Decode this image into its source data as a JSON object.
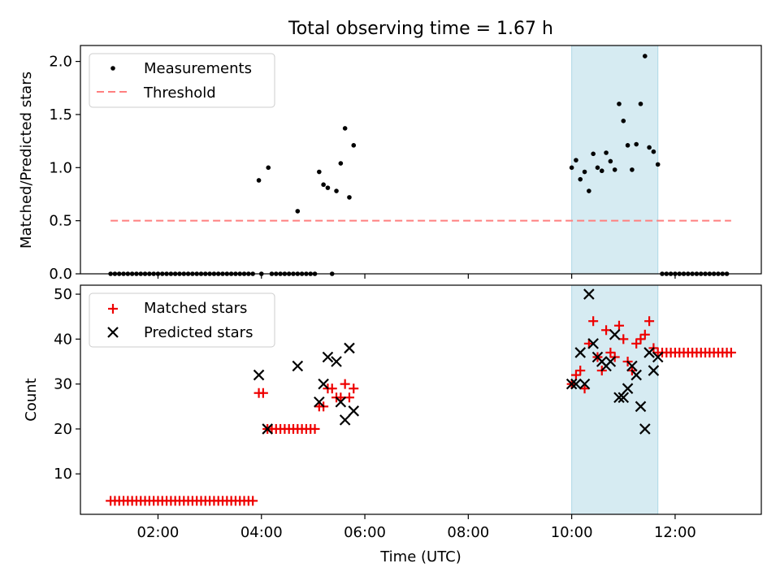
{
  "figure": {
    "title": "Total observing time = 1.67 h",
    "xlabel": "Time (UTC)"
  },
  "colors": {
    "measurement": "#000000",
    "threshold": "#ff7f7f",
    "matched": "#ee0000",
    "predicted": "#000000",
    "window_fill": "#add8e6"
  },
  "chart_data": [
    {
      "type": "scatter",
      "ylabel": "Matched/Predicted stars",
      "xlim": [
        "00:30",
        "13:40"
      ],
      "ylim": [
        0,
        2.15
      ],
      "xticks": [
        "02:00",
        "04:00",
        "06:00",
        "08:00",
        "10:00",
        "12:00"
      ],
      "yticks": [
        "0.0",
        "0.5",
        "1.0",
        "1.5",
        "2.0"
      ],
      "legend": {
        "position": "top-left",
        "entries": [
          "Measurements",
          "Threshold"
        ]
      },
      "highlight_window": {
        "start": "10:00",
        "end": "11:40"
      },
      "threshold": {
        "name": "Threshold",
        "y": 0.5,
        "from": "01:05",
        "to": "13:05"
      },
      "series": [
        {
          "name": "Measurements",
          "points": [
            [
              "01:05",
              0
            ],
            [
              "01:10",
              0
            ],
            [
              "01:15",
              0
            ],
            [
              "01:20",
              0
            ],
            [
              "01:25",
              0
            ],
            [
              "01:30",
              0
            ],
            [
              "01:35",
              0
            ],
            [
              "01:40",
              0
            ],
            [
              "01:45",
              0
            ],
            [
              "01:50",
              0
            ],
            [
              "01:55",
              0
            ],
            [
              "02:00",
              0
            ],
            [
              "02:05",
              0
            ],
            [
              "02:10",
              0
            ],
            [
              "02:15",
              0
            ],
            [
              "02:20",
              0
            ],
            [
              "02:25",
              0
            ],
            [
              "02:30",
              0
            ],
            [
              "02:35",
              0
            ],
            [
              "02:40",
              0
            ],
            [
              "02:45",
              0
            ],
            [
              "02:50",
              0
            ],
            [
              "02:55",
              0
            ],
            [
              "03:00",
              0
            ],
            [
              "03:05",
              0
            ],
            [
              "03:10",
              0
            ],
            [
              "03:15",
              0
            ],
            [
              "03:20",
              0
            ],
            [
              "03:25",
              0
            ],
            [
              "03:30",
              0
            ],
            [
              "03:35",
              0
            ],
            [
              "03:40",
              0
            ],
            [
              "03:45",
              0
            ],
            [
              "03:50",
              0
            ],
            [
              "03:57",
              0.88
            ],
            [
              "04:00",
              0
            ],
            [
              "04:08",
              1.0
            ],
            [
              "04:12",
              0
            ],
            [
              "04:17",
              0
            ],
            [
              "04:22",
              0
            ],
            [
              "04:27",
              0
            ],
            [
              "04:32",
              0
            ],
            [
              "04:37",
              0
            ],
            [
              "04:42",
              0
            ],
            [
              "04:47",
              0
            ],
            [
              "04:42",
              0.59
            ],
            [
              "04:52",
              0
            ],
            [
              "04:57",
              0
            ],
            [
              "05:02",
              0
            ],
            [
              "05:07",
              0.96
            ],
            [
              "05:12",
              0.84
            ],
            [
              "05:17",
              0.81
            ],
            [
              "05:22",
              0
            ],
            [
              "05:27",
              0.78
            ],
            [
              "05:32",
              1.04
            ],
            [
              "05:37",
              1.37
            ],
            [
              "05:42",
              0.72
            ],
            [
              "05:47",
              1.21
            ],
            [
              "10:00",
              1.0
            ],
            [
              "10:05",
              1.07
            ],
            [
              "10:10",
              0.89
            ],
            [
              "10:15",
              0.96
            ],
            [
              "10:20",
              0.78
            ],
            [
              "10:25",
              1.13
            ],
            [
              "10:30",
              1.0
            ],
            [
              "10:35",
              0.97
            ],
            [
              "10:40",
              1.14
            ],
            [
              "10:45",
              1.06
            ],
            [
              "10:50",
              0.98
            ],
            [
              "10:55",
              1.6
            ],
            [
              "11:00",
              1.44
            ],
            [
              "11:05",
              1.21
            ],
            [
              "11:10",
              0.98
            ],
            [
              "11:15",
              1.22
            ],
            [
              "11:20",
              1.6
            ],
            [
              "11:25",
              2.05
            ],
            [
              "11:30",
              1.19
            ],
            [
              "11:35",
              1.15
            ],
            [
              "11:40",
              1.03
            ],
            [
              "11:45",
              0
            ],
            [
              "11:50",
              0
            ],
            [
              "11:55",
              0
            ],
            [
              "12:00",
              0
            ],
            [
              "12:05",
              0
            ],
            [
              "12:10",
              0
            ],
            [
              "12:15",
              0
            ],
            [
              "12:20",
              0
            ],
            [
              "12:25",
              0
            ],
            [
              "12:30",
              0
            ],
            [
              "12:35",
              0
            ],
            [
              "12:40",
              0
            ],
            [
              "12:45",
              0
            ],
            [
              "12:50",
              0
            ],
            [
              "12:55",
              0
            ],
            [
              "13:00",
              0
            ]
          ]
        }
      ]
    },
    {
      "type": "scatter",
      "ylabel": "Count",
      "xlim": [
        "00:30",
        "13:40"
      ],
      "ylim": [
        1,
        52
      ],
      "xticks": [
        "02:00",
        "04:00",
        "06:00",
        "08:00",
        "10:00",
        "12:00"
      ],
      "yticks": [
        "10",
        "20",
        "30",
        "40",
        "50"
      ],
      "legend": {
        "position": "top-left",
        "entries": [
          "Matched stars",
          "Predicted stars"
        ]
      },
      "highlight_window": {
        "start": "10:00",
        "end": "11:40"
      },
      "series": [
        {
          "name": "Matched stars",
          "points": [
            [
              "01:05",
              4
            ],
            [
              "01:10",
              4
            ],
            [
              "01:15",
              4
            ],
            [
              "01:20",
              4
            ],
            [
              "01:25",
              4
            ],
            [
              "01:30",
              4
            ],
            [
              "01:35",
              4
            ],
            [
              "01:40",
              4
            ],
            [
              "01:45",
              4
            ],
            [
              "01:50",
              4
            ],
            [
              "01:55",
              4
            ],
            [
              "02:00",
              4
            ],
            [
              "02:05",
              4
            ],
            [
              "02:10",
              4
            ],
            [
              "02:15",
              4
            ],
            [
              "02:20",
              4
            ],
            [
              "02:25",
              4
            ],
            [
              "02:30",
              4
            ],
            [
              "02:35",
              4
            ],
            [
              "02:40",
              4
            ],
            [
              "02:45",
              4
            ],
            [
              "02:50",
              4
            ],
            [
              "02:55",
              4
            ],
            [
              "03:00",
              4
            ],
            [
              "03:05",
              4
            ],
            [
              "03:10",
              4
            ],
            [
              "03:15",
              4
            ],
            [
              "03:20",
              4
            ],
            [
              "03:25",
              4
            ],
            [
              "03:30",
              4
            ],
            [
              "03:35",
              4
            ],
            [
              "03:40",
              4
            ],
            [
              "03:45",
              4
            ],
            [
              "03:50",
              4
            ],
            [
              "03:57",
              28
            ],
            [
              "04:02",
              28
            ],
            [
              "04:07",
              20
            ],
            [
              "04:12",
              20
            ],
            [
              "04:17",
              20
            ],
            [
              "04:22",
              20
            ],
            [
              "04:27",
              20
            ],
            [
              "04:32",
              20
            ],
            [
              "04:37",
              20
            ],
            [
              "04:42",
              20
            ],
            [
              "04:47",
              20
            ],
            [
              "04:52",
              20
            ],
            [
              "04:57",
              20
            ],
            [
              "05:02",
              20
            ],
            [
              "05:07",
              25
            ],
            [
              "05:12",
              25
            ],
            [
              "05:17",
              29
            ],
            [
              "05:22",
              29
            ],
            [
              "05:27",
              27
            ],
            [
              "05:32",
              27
            ],
            [
              "05:37",
              30
            ],
            [
              "05:42",
              27
            ],
            [
              "05:47",
              29
            ],
            [
              "10:00",
              30
            ],
            [
              "10:05",
              32
            ],
            [
              "10:10",
              33
            ],
            [
              "10:15",
              29
            ],
            [
              "10:20",
              39
            ],
            [
              "10:25",
              44
            ],
            [
              "10:30",
              36
            ],
            [
              "10:35",
              33
            ],
            [
              "10:40",
              42
            ],
            [
              "10:45",
              37
            ],
            [
              "10:50",
              36
            ],
            [
              "10:55",
              43
            ],
            [
              "11:00",
              40
            ],
            [
              "11:05",
              35
            ],
            [
              "11:10",
              33
            ],
            [
              "11:15",
              39
            ],
            [
              "11:20",
              40
            ],
            [
              "11:25",
              41
            ],
            [
              "11:30",
              44
            ],
            [
              "11:35",
              38
            ],
            [
              "11:40",
              37
            ],
            [
              "11:45",
              37
            ],
            [
              "11:50",
              37
            ],
            [
              "11:55",
              37
            ],
            [
              "12:00",
              37
            ],
            [
              "12:05",
              37
            ],
            [
              "12:10",
              37
            ],
            [
              "12:15",
              37
            ],
            [
              "12:20",
              37
            ],
            [
              "12:25",
              37
            ],
            [
              "12:30",
              37
            ],
            [
              "12:35",
              37
            ],
            [
              "12:40",
              37
            ],
            [
              "12:45",
              37
            ],
            [
              "12:50",
              37
            ],
            [
              "12:55",
              37
            ],
            [
              "13:00",
              37
            ],
            [
              "13:05",
              37
            ]
          ]
        },
        {
          "name": "Predicted stars",
          "points": [
            [
              "03:57",
              32
            ],
            [
              "04:07",
              20
            ],
            [
              "04:42",
              34
            ],
            [
              "05:07",
              26
            ],
            [
              "05:12",
              30
            ],
            [
              "05:17",
              36
            ],
            [
              "05:27",
              35
            ],
            [
              "05:32",
              26
            ],
            [
              "05:37",
              22
            ],
            [
              "05:42",
              38
            ],
            [
              "05:47",
              24
            ],
            [
              "10:00",
              30
            ],
            [
              "10:05",
              30
            ],
            [
              "10:10",
              37
            ],
            [
              "10:15",
              30
            ],
            [
              "10:20",
              50
            ],
            [
              "10:25",
              39
            ],
            [
              "10:30",
              36
            ],
            [
              "10:35",
              35
            ],
            [
              "10:40",
              34
            ],
            [
              "10:45",
              35
            ],
            [
              "10:50",
              41
            ],
            [
              "10:55",
              27
            ],
            [
              "11:00",
              27
            ],
            [
              "11:05",
              29
            ],
            [
              "11:10",
              34
            ],
            [
              "11:15",
              32
            ],
            [
              "11:20",
              25
            ],
            [
              "11:25",
              20
            ],
            [
              "11:30",
              37
            ],
            [
              "11:35",
              33
            ],
            [
              "11:40",
              36
            ]
          ]
        }
      ]
    }
  ]
}
